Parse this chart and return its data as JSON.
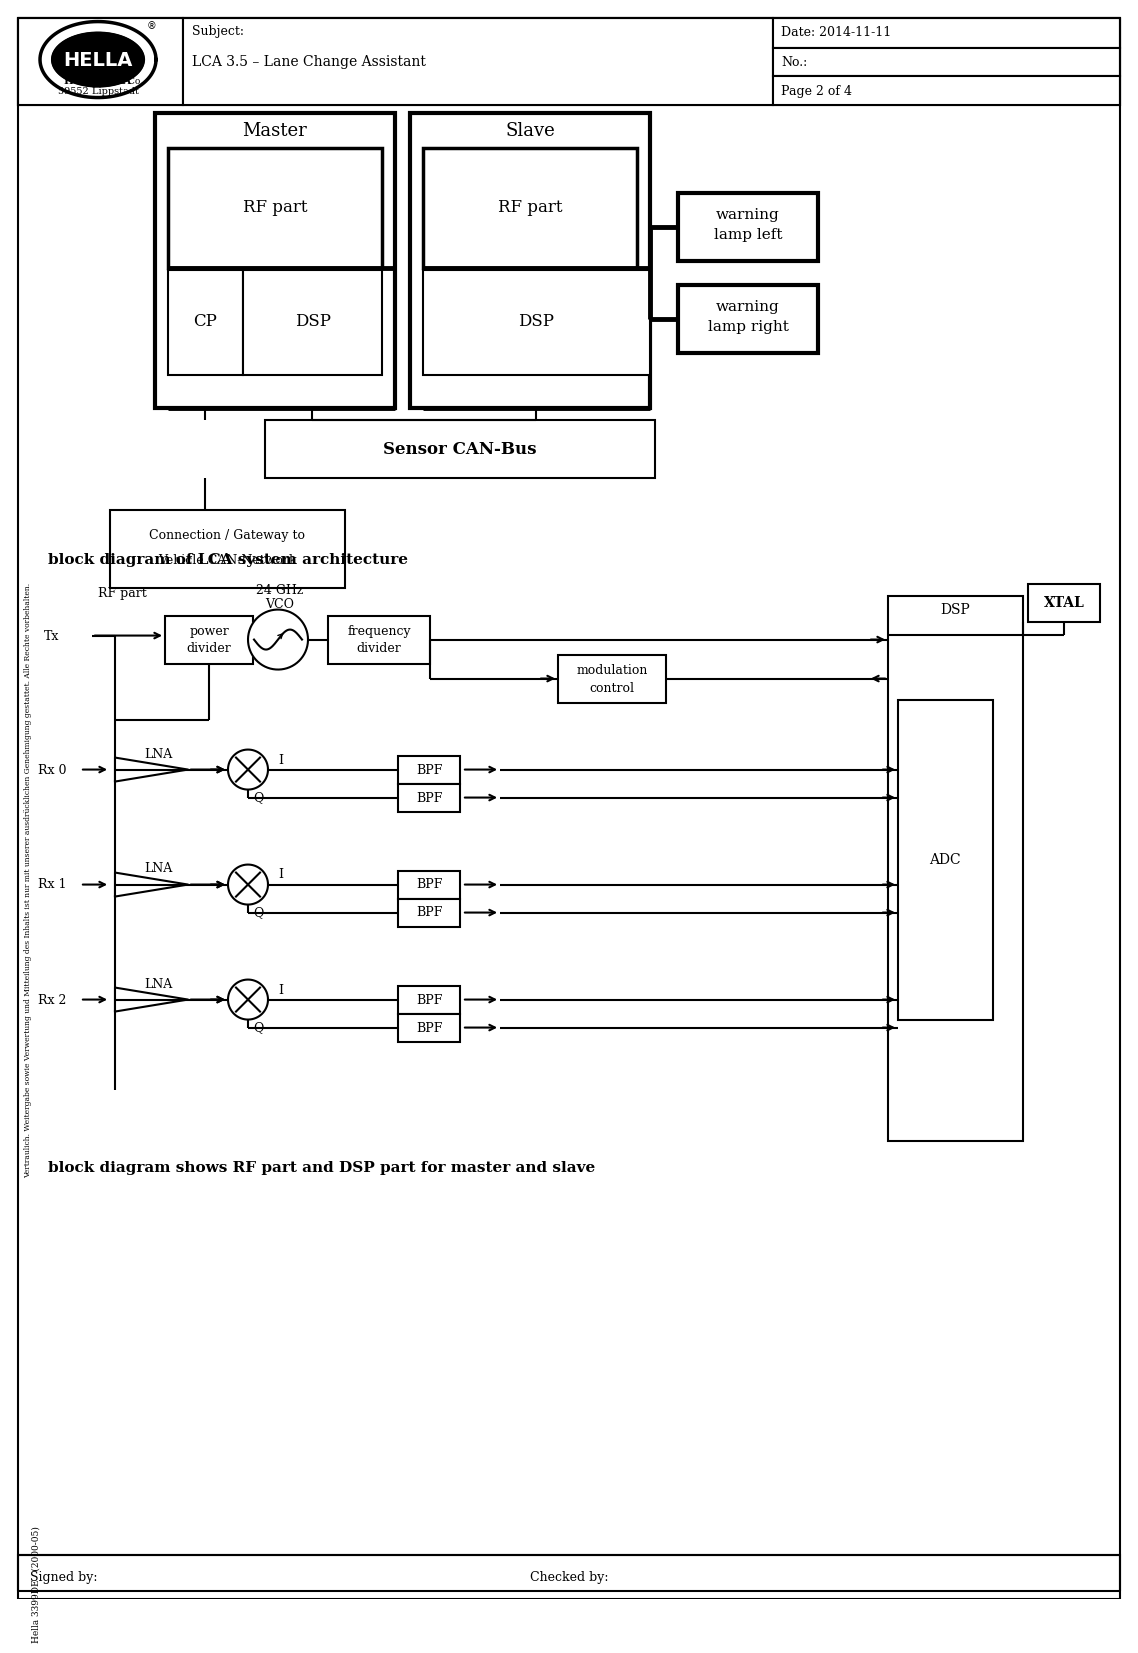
{
  "page_bg": "#ffffff",
  "header": {
    "subject": "Subject:",
    "title": "LCA 3.5 – Lane Change Assistant",
    "date_label": "Date: 2014-11-11",
    "no_label": "No.:",
    "page_label": "Page 2 of 4",
    "company": "Hella KGaA",
    "company2": "Hueck & Co.",
    "address": "59552 Lippstadt"
  },
  "footer": {
    "left": "Signed by:",
    "right": "Checked by:",
    "bottom_left": "Hella 3399DE   (2000-05)",
    "side_text": "Vertraulich. Weitergabe sowie Verwertung und Mitteilung des Inhalts ist nur mit unserer ausdrücklichen Genehmigung gestattet. Alle Rechte vorbehalten."
  },
  "caption1": "block diagram of LCA system architecture",
  "caption2": "block diagram shows RF part and DSP part for master and slave"
}
